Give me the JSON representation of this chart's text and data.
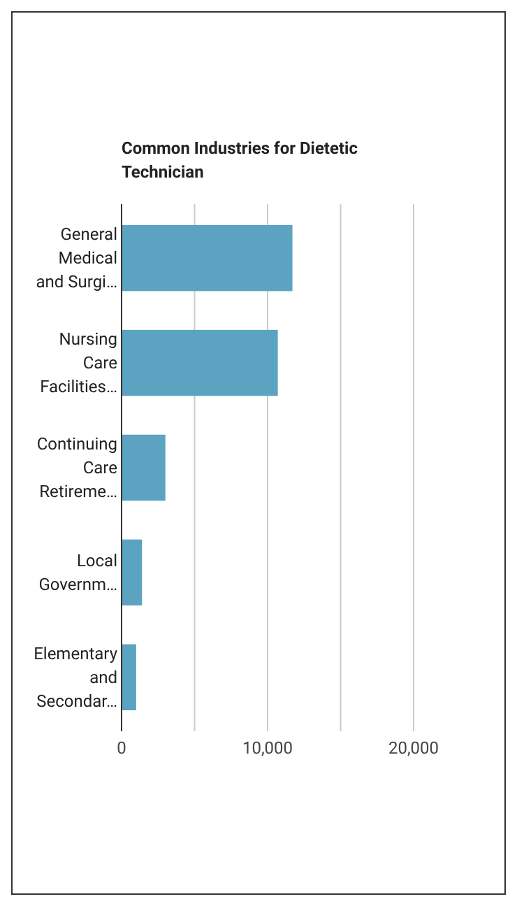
{
  "chart_data": {
    "type": "bar",
    "orientation": "horizontal",
    "title": "Common Industries for Dietetic Technician",
    "categories": [
      "General Medical and Surgi…",
      "Nursing Care Facilities…",
      "Continuing Care Retireme…",
      "Local Governm…",
      "Elementary and Secondar…"
    ],
    "values": [
      11700,
      10700,
      3000,
      1400,
      1000
    ],
    "color": "#5ba3c0",
    "xlim": [
      0,
      20000
    ],
    "xticks": [
      0,
      {
        "value": 5000,
        "label": null
      },
      {
        "value": 10000,
        "label": "10,000"
      },
      {
        "value": 15000,
        "label": null
      },
      {
        "value": 20000,
        "label": "20,000"
      }
    ],
    "grid": "x"
  }
}
